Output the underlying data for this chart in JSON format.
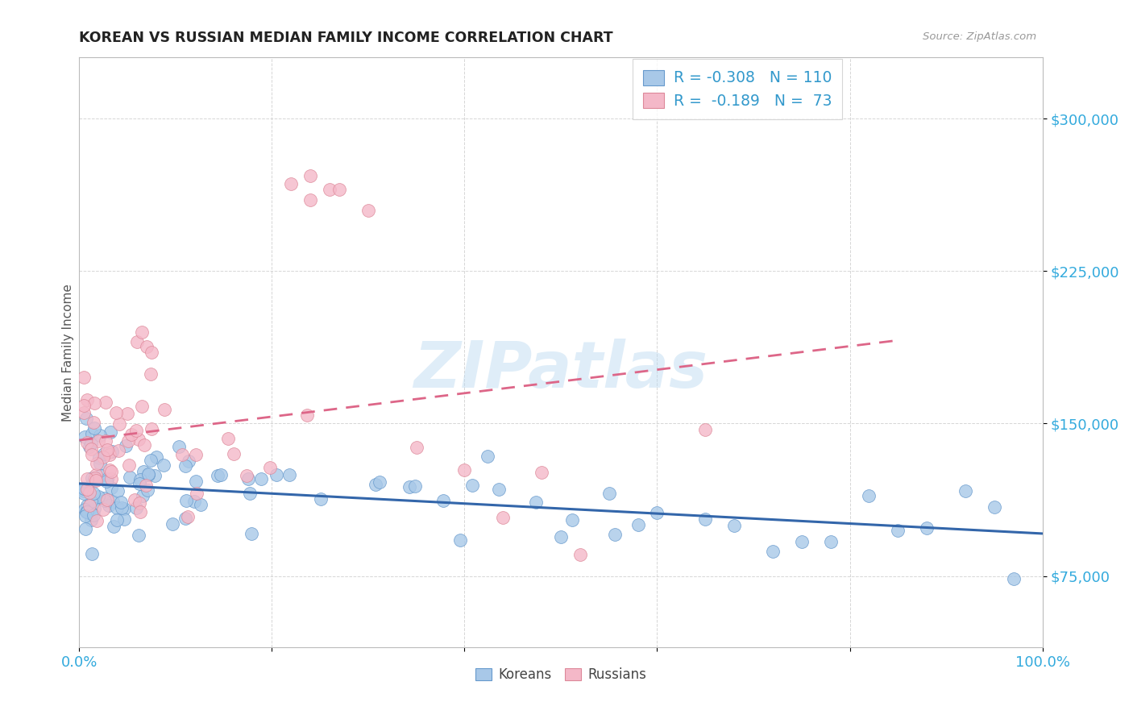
{
  "title": "KOREAN VS RUSSIAN MEDIAN FAMILY INCOME CORRELATION CHART",
  "source": "Source: ZipAtlas.com",
  "ylabel": "Median Family Income",
  "ytick_values": [
    75000,
    150000,
    225000,
    300000
  ],
  "ylim": [
    40000,
    330000
  ],
  "xlim": [
    0,
    1.0
  ],
  "watermark": "ZIPatlas",
  "legend_korean_R": "-0.308",
  "legend_korean_N": "110",
  "legend_russian_R": "-0.189",
  "legend_russian_N": "73",
  "korean_color": "#a8c8e8",
  "russian_color": "#f4b8c8",
  "korean_edge": "#6699cc",
  "russian_edge": "#dd8899",
  "trend_korean_color": "#3366aa",
  "trend_russian_color": "#dd6688",
  "background_color": "#ffffff",
  "grid_color": "#cccccc",
  "title_color": "#222222",
  "axis_tick_color": "#33aadd",
  "legend_text_color": "#3399cc"
}
